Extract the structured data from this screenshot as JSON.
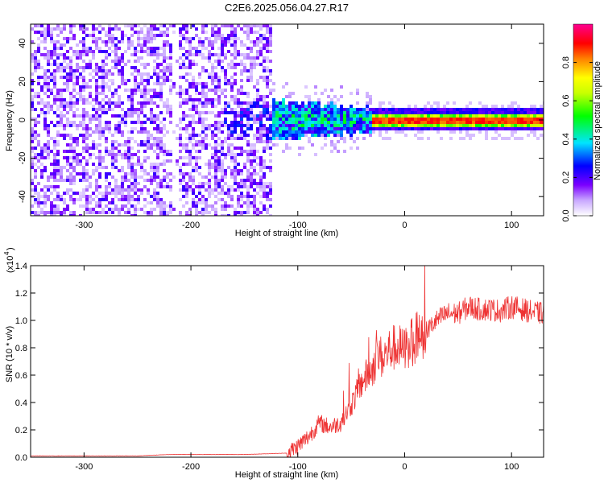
{
  "title": "C2E6.2025.056.04.27.R17",
  "chart_data": [
    {
      "type": "heatmap",
      "xlabel": "Height of straight line (km)",
      "ylabel": "Frequency (Hz)",
      "xlim": [
        -350,
        130
      ],
      "ylim": [
        -50,
        50
      ],
      "x_ticks": [
        "-300",
        "-200",
        "-100",
        "0",
        "100"
      ],
      "x_tick_values": [
        -300,
        -200,
        -100,
        0,
        100
      ],
      "y_ticks": [
        "-40",
        "-20",
        "0",
        "20",
        "40"
      ],
      "y_tick_values": [
        -40,
        -20,
        0,
        20,
        40
      ],
      "colorbar": {
        "label": "Normalized spectral amplitude",
        "range": [
          0,
          1
        ],
        "ticks": [
          "0.0",
          "0.2",
          "0.4",
          "0.6",
          "0.8"
        ],
        "tick_values": [
          0,
          0.2,
          0.4,
          0.6,
          0.8
        ],
        "colormap": [
          "#ffffff",
          "#7b00ff",
          "#0000ff",
          "#00e5ff",
          "#00ff00",
          "#ffff00",
          "#ff8000",
          "#ff0000",
          "#ff0090"
        ]
      },
      "features": {
        "noise_region": [
          -350,
          -125
        ],
        "signal_line_center_hz": 0,
        "strong_signal_start_km": -30
      }
    },
    {
      "type": "line",
      "xlabel": "Height of straight line (km)",
      "ylabel": "SNR (10 * v/v)",
      "scale_note": "(x10",
      "scale_exponent": "4",
      "xlim": [
        -350,
        130
      ],
      "ylim": [
        0,
        1.4
      ],
      "x_ticks": [
        "-300",
        "-200",
        "-100",
        "0",
        "100"
      ],
      "x_tick_values": [
        -300,
        -200,
        -100,
        0,
        100
      ],
      "y_ticks": [
        "0.0",
        "0.2",
        "0.4",
        "0.6",
        "0.8",
        "1.0",
        "1.2",
        "1.4"
      ],
      "y_tick_values": [
        0,
        0.2,
        0.4,
        0.6,
        0.8,
        1.0,
        1.2,
        1.4
      ],
      "series": [
        {
          "color": "#ee3333",
          "x": [
            -350,
            -300,
            -250,
            -220,
            -200,
            -150,
            -110,
            -100,
            -90,
            -80,
            -70,
            -60,
            -50,
            -40,
            -30,
            -25,
            -20,
            -15,
            -10,
            -5,
            0,
            5,
            10,
            15,
            20,
            30,
            40,
            50,
            60,
            70,
            80,
            90,
            100,
            110,
            120,
            130
          ],
          "y": [
            0.01,
            0.01,
            0.01,
            0.02,
            0.02,
            0.02,
            0.03,
            0.08,
            0.15,
            0.25,
            0.22,
            0.25,
            0.38,
            0.55,
            0.65,
            0.75,
            0.72,
            0.78,
            0.8,
            0.8,
            0.78,
            0.82,
            0.88,
            0.9,
            0.92,
            1.0,
            1.05,
            1.05,
            1.1,
            1.08,
            1.08,
            1.07,
            1.1,
            1.08,
            1.06,
            1.05
          ]
        }
      ]
    }
  ]
}
